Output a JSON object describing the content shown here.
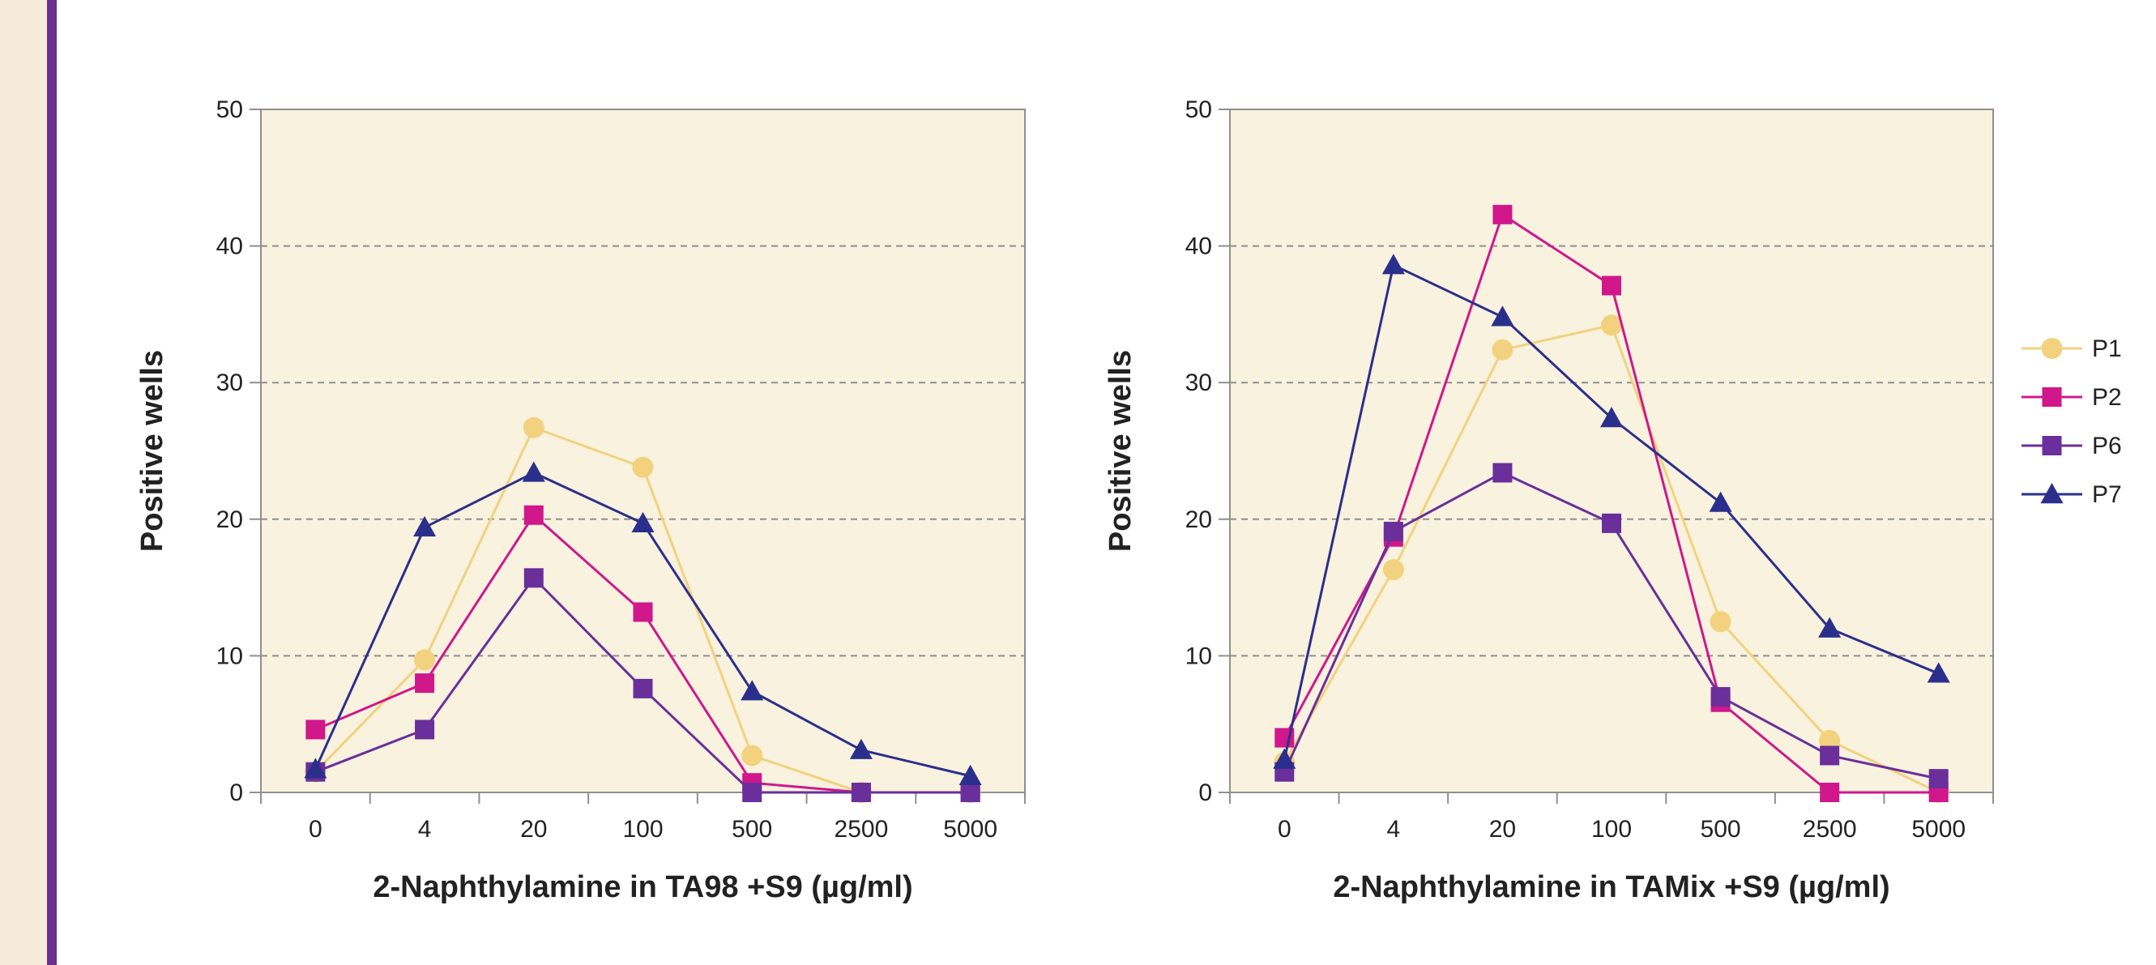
{
  "colors": {
    "plot_background": "#f8f2df",
    "sidebar_background": "#f6eadb",
    "sidebar_bar": "#6a2f8f",
    "P1": "#f2d27e",
    "P2": "#d0178b",
    "P6": "#6a2f9a",
    "P7": "#2b2f8c"
  },
  "chart_data": [
    {
      "type": "line",
      "title": "",
      "xlabel": "2-Naphthylamine in TA98 +S9 (µg/ml)",
      "ylabel": "Positive wells",
      "categories": [
        "0",
        "4",
        "20",
        "100",
        "500",
        "2500",
        "5000"
      ],
      "ylim": [
        0,
        50
      ],
      "yticks": [
        "0",
        "10",
        "20",
        "30",
        "40",
        "50"
      ],
      "grid": "horizontal dashed",
      "series": [
        {
          "name": "P1",
          "marker": "circle",
          "color": "#f2d27e",
          "values": [
            1.5,
            9.7,
            26.7,
            23.8,
            2.7,
            0,
            0
          ]
        },
        {
          "name": "P2",
          "marker": "square",
          "color": "#d0178b",
          "values": [
            4.6,
            8.0,
            20.3,
            13.2,
            0.7,
            0,
            0
          ]
        },
        {
          "name": "P6",
          "marker": "square",
          "color": "#6a2f9a",
          "values": [
            1.5,
            4.6,
            15.7,
            7.6,
            0,
            0,
            0
          ]
        },
        {
          "name": "P7",
          "marker": "triangle",
          "color": "#2b2f8c",
          "values": [
            1.7,
            19.4,
            23.4,
            19.7,
            7.4,
            3.1,
            1.2
          ]
        }
      ]
    },
    {
      "type": "line",
      "title": "",
      "xlabel": "2-Naphthylamine in TAMix +S9 (µg/ml)",
      "ylabel": "Positive wells",
      "categories": [
        "0",
        "4",
        "20",
        "100",
        "500",
        "2500",
        "5000"
      ],
      "ylim": [
        0,
        50
      ],
      "yticks": [
        "0",
        "10",
        "20",
        "30",
        "40",
        "50"
      ],
      "grid": "horizontal dashed",
      "legend_position": "right",
      "series": [
        {
          "name": "P1",
          "marker": "circle",
          "color": "#f2d27e",
          "values": [
            2.2,
            16.3,
            32.4,
            34.2,
            12.5,
            3.8,
            0
          ]
        },
        {
          "name": "P2",
          "marker": "square",
          "color": "#d0178b",
          "values": [
            4.0,
            18.7,
            42.3,
            37.1,
            6.6,
            0,
            0
          ]
        },
        {
          "name": "P6",
          "marker": "square",
          "color": "#6a2f9a",
          "values": [
            1.5,
            19.1,
            23.4,
            19.7,
            7.0,
            2.7,
            1.0
          ]
        },
        {
          "name": "P7",
          "marker": "triangle",
          "color": "#2b2f8c",
          "values": [
            2.4,
            38.6,
            34.8,
            27.4,
            21.2,
            12.0,
            8.7
          ]
        }
      ]
    }
  ]
}
